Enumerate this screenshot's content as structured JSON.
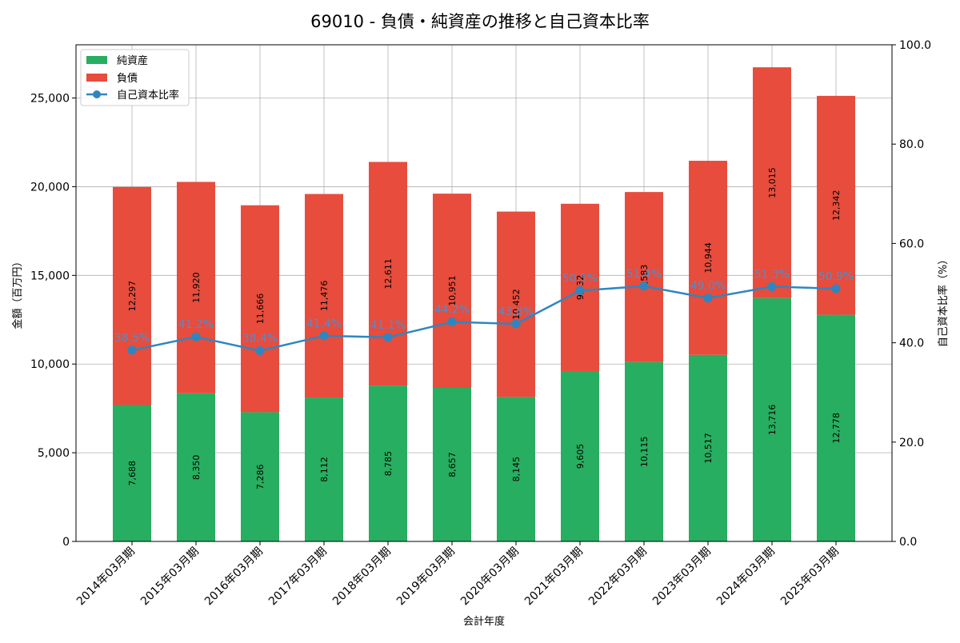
{
  "chart_data": {
    "type": "bar",
    "title": "69010 - 負債・純資産の推移と自己資本比率",
    "xlabel": "会計年度",
    "ylabel": "金額（百万円）",
    "y2label": "自己資本比率（%）",
    "ylim": [
      0,
      28000
    ],
    "y2lim": [
      0,
      100
    ],
    "yticks": [
      0,
      5000,
      10000,
      15000,
      20000,
      25000
    ],
    "ytick_labels": [
      "0",
      "5,000",
      "10,000",
      "15,000",
      "20,000",
      "25,000"
    ],
    "y2ticks": [
      0,
      20,
      40,
      60,
      80,
      100
    ],
    "y2tick_labels": [
      "0.0",
      "20.0",
      "40.0",
      "60.0",
      "80.0",
      "100.0"
    ],
    "categories": [
      "2014年03月期",
      "2015年03月期",
      "2016年03月期",
      "2017年03月期",
      "2018年03月期",
      "2019年03月期",
      "2020年03月期",
      "2021年03月期",
      "2022年03月期",
      "2023年03月期",
      "2024年03月期",
      "2025年03月期"
    ],
    "series": [
      {
        "name": "純資産",
        "kind": "bar",
        "color": "#27ae60",
        "values": [
          7688,
          8350,
          7286,
          8112,
          8785,
          8657,
          8145,
          9605,
          10115,
          10517,
          13716,
          12778
        ],
        "labels": [
          "7,688",
          "8,350",
          "7,286",
          "8,112",
          "8,785",
          "8,657",
          "8,145",
          "9,605",
          "10,115",
          "10,517",
          "13,716",
          "12,778"
        ]
      },
      {
        "name": "負債",
        "kind": "bar",
        "color": "#e74c3c",
        "values": [
          12297,
          11920,
          11666,
          11476,
          12611,
          10951,
          10452,
          9432,
          9583,
          10944,
          13015,
          12342
        ],
        "labels": [
          "12,297",
          "11,920",
          "11,666",
          "11,476",
          "12,611",
          "10,951",
          "10,452",
          "9,432",
          "9,583",
          "10,944",
          "13,015",
          "12,342"
        ]
      },
      {
        "name": "自己資本比率",
        "kind": "line",
        "axis": "right",
        "color": "#2e86c1",
        "values": [
          38.5,
          41.2,
          38.4,
          41.4,
          41.1,
          44.2,
          43.8,
          50.5,
          51.4,
          49.0,
          51.3,
          50.9
        ],
        "labels": [
          "38.5%",
          "41.2%",
          "38.4%",
          "41.4%",
          "41.1%",
          "44.2%",
          "43.8%",
          "50.5%",
          "51.4%",
          "49.0%",
          "51.3%",
          "50.9%"
        ]
      }
    ],
    "grid": true,
    "legend": "top-left"
  }
}
